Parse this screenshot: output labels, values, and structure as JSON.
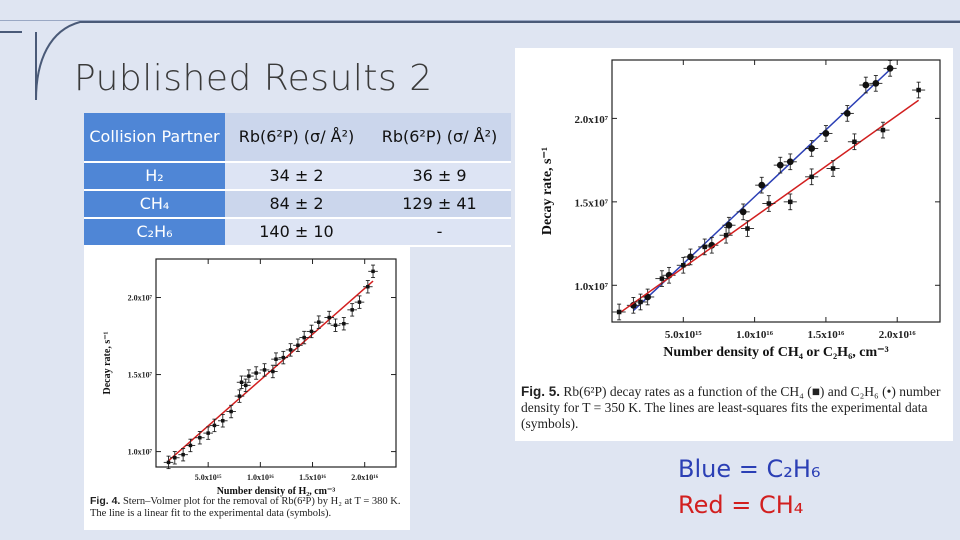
{
  "slide": {
    "title": "Published Results 2"
  },
  "table": {
    "header": {
      "label": "Collision Partner",
      "col_a": "Rb(6²P) (σ/ Å²)",
      "col_b": "Rb(6²P) (σ/ Å²)"
    },
    "rows": [
      {
        "partner": "H₂",
        "a": "34 ± 2",
        "b": "36 ± 9"
      },
      {
        "partner": "CH₄",
        "a": "84 ± 2",
        "b": "129 ± 41"
      },
      {
        "partner": "C₂H₆",
        "a": "140 ± 10",
        "b": "-"
      }
    ]
  },
  "legend": {
    "blue": "Blue = C₂H₆",
    "red": "Red = CH₄",
    "blue_color": "#2b3fb5",
    "red_color": "#d21f1f"
  },
  "chart_data": [
    {
      "type": "scatter",
      "title": "",
      "ylabel": "Decay rate, s⁻¹",
      "xlabel": "Number density of H₂, cm⁻³",
      "xticks": [
        "5.0x10¹⁵",
        "1.0x10¹⁶",
        "1.5x10¹⁶",
        "2.0x10¹⁶"
      ],
      "yticks": [
        "1.0x10⁷",
        "1.5x10⁷",
        "2.0x10⁷"
      ],
      "xlim": [
        0,
        2.3e+16
      ],
      "ylim": [
        9000000.0,
        22500000.0
      ],
      "fit_color": "#d21f1f",
      "series": [
        {
          "x": [
            1200000000000000.0,
            1800000000000000.0,
            2600000000000000.0,
            3300000000000000.0,
            4200000000000000.0,
            5000000000000000.0,
            5600000000000000.0,
            6400000000000000.0,
            7200000000000000.0,
            8000000000000000.0,
            8200000000000000.0,
            8600000000000000.0,
            8900000000000000.0,
            9600000000000000.0,
            1.04e+16,
            1.12e+16,
            1.15e+16,
            1.22e+16,
            1.29e+16,
            1.36e+16,
            1.42e+16,
            1.49e+16,
            1.56e+16,
            1.66e+16,
            1.72e+16,
            1.8e+16,
            1.88e+16,
            1.95e+16,
            2.03e+16,
            2.08e+16
          ],
          "y": [
            9300000.0,
            9600000.0,
            9800000.0,
            10400000.0,
            10900000.0,
            11200000.0,
            11700000.0,
            12000000.0,
            12600000.0,
            13600000.0,
            14500000.0,
            14300000.0,
            14900000.0,
            15100000.0,
            15300000.0,
            15200000.0,
            16000000.0,
            16100000.0,
            16600000.0,
            16900000.0,
            17400000.0,
            17800000.0,
            18400000.0,
            18700000.0,
            18200000.0,
            18300000.0,
            19200000.0,
            19700000.0,
            20700000.0,
            21700000.0
          ]
        }
      ],
      "caption_bold": "Fig. 4.",
      "caption": "Stern–Volmer plot for the removal of Rb(6²P) by H₂ at T = 380 K. The line is a linear fit to the experimental data (symbols)."
    },
    {
      "type": "scatter",
      "title": "",
      "ylabel": "Decay rate, s⁻¹",
      "xlabel": "Number density of CH₄ or C₂H₆, cm⁻³",
      "xticks": [
        "5.0x10¹⁵",
        "1.0x10¹⁶",
        "1.5x10¹⁶",
        "2.0x10¹⁶"
      ],
      "yticks": [
        "1.0x10⁷",
        "1.5x10⁷",
        "2.0x10⁷"
      ],
      "xlim": [
        0,
        2.3e+16
      ],
      "ylim": [
        7800000.0,
        23500000.0
      ],
      "series": [
        {
          "name": "",
          "color": "#2b3fb5",
          "x": [
            1500000000000000.0,
            2500000000000000.0,
            4000000000000000.0,
            5500000000000000.0,
            7000000000000000.0,
            8200000000000000.0,
            9200000000000000.0,
            1.05e+16,
            1.18e+16,
            1.25e+16,
            1.4e+16,
            1.5e+16,
            1.65e+16,
            1.78e+16,
            1.85e+16,
            1.95e+16
          ],
          "y": [
            8800000.0,
            9300000.0,
            10600000.0,
            11700000.0,
            12400000.0,
            13600000.0,
            14400000.0,
            16000000.0,
            17200000.0,
            17400000.0,
            18200000.0,
            19100000.0,
            20300000.0,
            22000000.0,
            22100000.0,
            23000000.0
          ]
        },
        {
          "name": "",
          "color": "#d21f1f",
          "x": [
            500000000000000.0,
            2000000000000000.0,
            3500000000000000.0,
            5000000000000000.0,
            6500000000000000.0,
            8000000000000000.0,
            9500000000000000.0,
            1.1e+16,
            1.25e+16,
            1.4e+16,
            1.55e+16,
            1.7e+16,
            1.9e+16,
            2.15e+16
          ],
          "y": [
            8400000.0,
            9000000.0,
            10400000.0,
            11200000.0,
            12300000.0,
            13000000.0,
            13400000.0,
            14900000.0,
            15000000.0,
            16500000.0,
            17000000.0,
            18600000.0,
            19300000.0,
            21700000.0
          ]
        }
      ],
      "caption_bold": "Fig. 5.",
      "caption": "Rb(6²P) decay rates as a function of the CH₄ (■) and C₂H₆ (•) number density for T = 350 K. The lines are least-squares fits the experimental data (symbols)."
    }
  ]
}
